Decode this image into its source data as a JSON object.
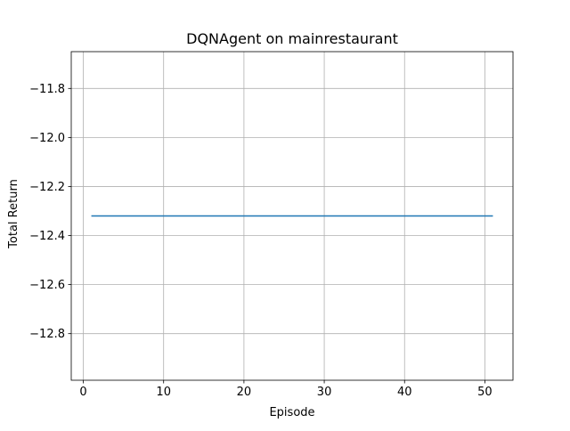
{
  "chart_data": {
    "type": "line",
    "title": "DQNAgent on mainrestaurant",
    "xlabel": "Episode",
    "ylabel": "Total Return",
    "xlim": [
      -1.5,
      53.5
    ],
    "ylim": [
      -12.99,
      -11.65
    ],
    "x_ticks": [
      0,
      10,
      20,
      30,
      40,
      50
    ],
    "x_tick_labels": [
      "0",
      "10",
      "20",
      "30",
      "40",
      "50"
    ],
    "y_ticks": [
      -11.8,
      -12.0,
      -12.2,
      -12.4,
      -12.6,
      -12.8
    ],
    "y_tick_labels": [
      "−11.8",
      "−12.0",
      "−12.2",
      "−12.4",
      "−12.6",
      "−12.8"
    ],
    "grid": true,
    "series": [
      {
        "color": "#1f77b4",
        "x": [
          1,
          51
        ],
        "y": [
          -12.32,
          -12.32
        ]
      }
    ]
  }
}
